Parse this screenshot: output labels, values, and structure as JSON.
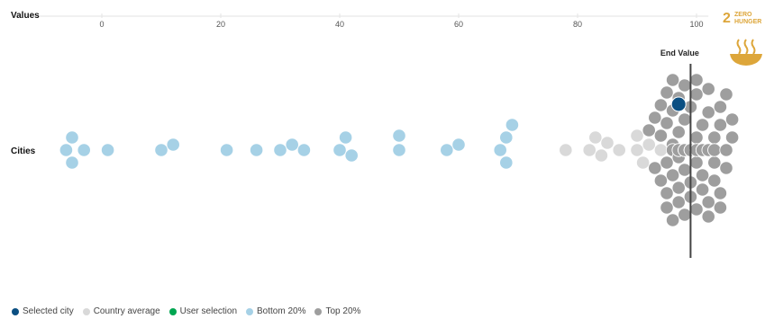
{
  "chart_data": {
    "type": "scatter",
    "title": "",
    "xlabel": "Values",
    "ylabel": "Cities",
    "xlim": [
      -8,
      102
    ],
    "xticks": [
      0,
      20,
      40,
      60,
      80,
      100
    ],
    "reference_line": {
      "label": "End Value",
      "x": 99
    },
    "categories": [
      "Cities"
    ],
    "series": [
      {
        "name": "Bottom 20%",
        "color": "#a6d1e6",
        "values": [
          -6,
          -5,
          -5,
          -3,
          1,
          10,
          12,
          21,
          26,
          30,
          32,
          34,
          40,
          41,
          42,
          50,
          50,
          58,
          60,
          67,
          68,
          68,
          69
        ]
      },
      {
        "name": "Country average",
        "color": "#d9d9d9",
        "values": [
          78,
          82,
          83,
          84,
          85,
          87,
          90,
          90,
          91,
          92,
          94
        ]
      },
      {
        "name": "Top 20%",
        "color": "#9e9e9e",
        "values": [
          92,
          93,
          93,
          94,
          94,
          94,
          95,
          95,
          95,
          95,
          95,
          96,
          96,
          96,
          96,
          96,
          96,
          97,
          97,
          97,
          97,
          97,
          97,
          97,
          97,
          98,
          98,
          98,
          98,
          98,
          98,
          98,
          98,
          98,
          99,
          99,
          99,
          99,
          99,
          99,
          99,
          99,
          99,
          100,
          100,
          100,
          100,
          100,
          100,
          100,
          100,
          101,
          101,
          101,
          101,
          101,
          101,
          101,
          102,
          102,
          102,
          102,
          102,
          102,
          103,
          103,
          103,
          103,
          103,
          104,
          104,
          104,
          104,
          105,
          105,
          105,
          106,
          106
        ]
      },
      {
        "name": "Selected city",
        "color": "#0b4f82",
        "values": [
          97
        ]
      }
    ],
    "legend": {
      "position": "bottom-left",
      "items": [
        {
          "label": "Selected city",
          "color": "#0b4f82"
        },
        {
          "label": "Country average",
          "color": "#d9d9d9"
        },
        {
          "label": "User selection",
          "color": "#00a651"
        },
        {
          "label": "Bottom 20%",
          "color": "#a6d1e6"
        },
        {
          "label": "Top 20%",
          "color": "#9e9e9e"
        }
      ]
    }
  },
  "badge": {
    "number": "2",
    "line1": "ZERO",
    "line2": "HUNGER",
    "color": "#DDA63A"
  }
}
